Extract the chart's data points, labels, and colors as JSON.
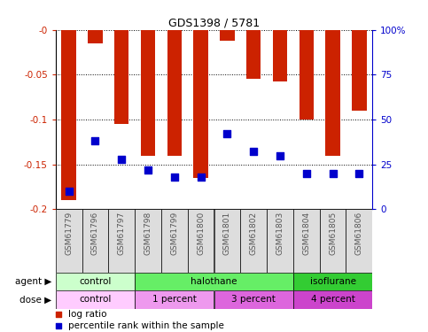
{
  "title": "GDS1398 / 5781",
  "samples": [
    "GSM61779",
    "GSM61796",
    "GSM61797",
    "GSM61798",
    "GSM61799",
    "GSM61800",
    "GSM61801",
    "GSM61802",
    "GSM61803",
    "GSM61804",
    "GSM61805",
    "GSM61806"
  ],
  "log_ratio": [
    -0.19,
    -0.015,
    -0.105,
    -0.14,
    -0.14,
    -0.165,
    -0.012,
    -0.055,
    -0.058,
    -0.1,
    -0.14,
    -0.09
  ],
  "percentile_rank": [
    0.1,
    0.38,
    0.28,
    0.22,
    0.18,
    0.18,
    0.42,
    0.32,
    0.3,
    0.2,
    0.2,
    0.2
  ],
  "ylim": [
    -0.2,
    0.0
  ],
  "yticks_left": [
    -0.0,
    -0.05,
    -0.1,
    -0.15,
    -0.2
  ],
  "yticks_left_labels": [
    "-0",
    "-0.05",
    "-0.1",
    "-0.15",
    "-0.2"
  ],
  "yticks_right_vals": [
    "100%",
    "75",
    "50",
    "25",
    "0"
  ],
  "yticks_right_pos": [
    0.0,
    -0.05,
    -0.1,
    -0.15,
    -0.2
  ],
  "bar_color": "#cc2200",
  "dot_color": "#0000cc",
  "bg_color": "#ffffff",
  "agent_row": [
    {
      "label": "control",
      "start": 0,
      "end": 3,
      "color": "#ccffcc"
    },
    {
      "label": "halothane",
      "start": 3,
      "end": 9,
      "color": "#66ee66"
    },
    {
      "label": "isoflurane",
      "start": 9,
      "end": 12,
      "color": "#33cc33"
    }
  ],
  "dose_row": [
    {
      "label": "control",
      "start": 0,
      "end": 3,
      "color": "#ffccff"
    },
    {
      "label": "1 percent",
      "start": 3,
      "end": 6,
      "color": "#ee99ee"
    },
    {
      "label": "3 percent",
      "start": 6,
      "end": 9,
      "color": "#dd66dd"
    },
    {
      "label": "4 percent",
      "start": 9,
      "end": 12,
      "color": "#cc44cc"
    }
  ],
  "sample_label_color": "#555555",
  "left_axis_color": "#cc2200",
  "right_axis_color": "#0000cc",
  "legend_red_label": "log ratio",
  "legend_blue_label": "percentile rank within the sample",
  "bar_width": 0.55,
  "dot_size": 35
}
